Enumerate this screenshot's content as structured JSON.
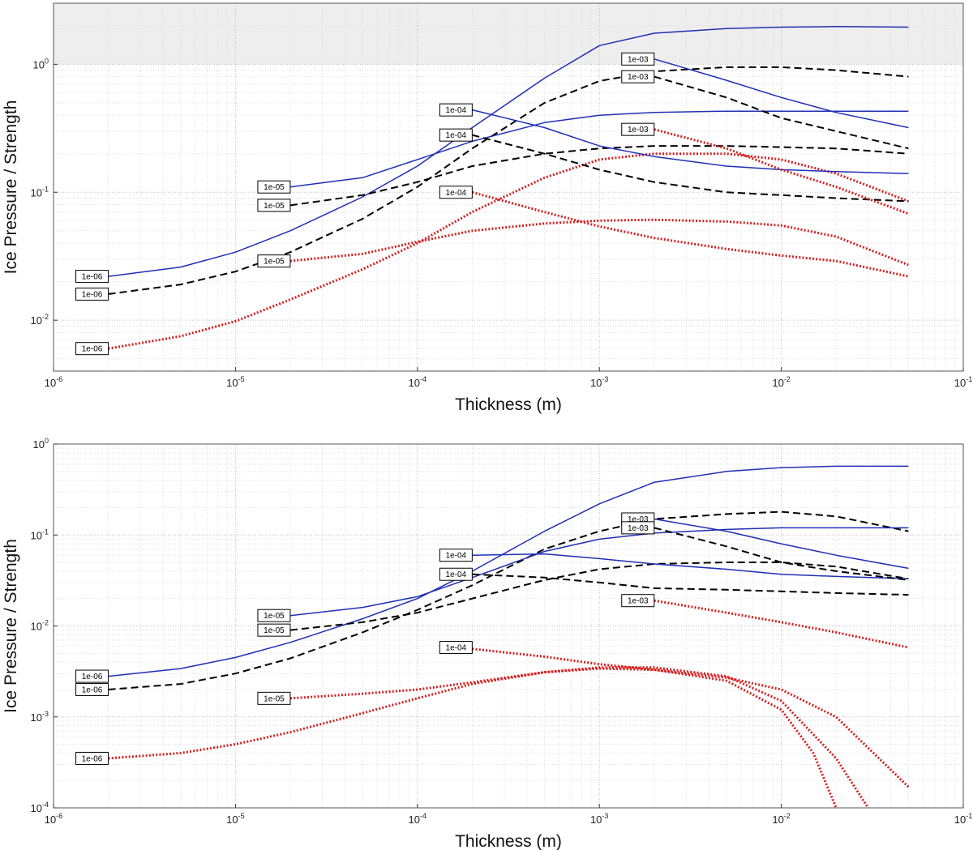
{
  "chart_data": [
    {
      "type": "line",
      "xscale": "log",
      "yscale": "log",
      "xlim": [
        1e-06,
        0.1
      ],
      "ylim": [
        0.004,
        3
      ],
      "xticks": [
        1e-06,
        1e-05,
        0.0001,
        0.001,
        0.01,
        0.1
      ],
      "xtick_labels": [
        [
          "10",
          "-6"
        ],
        [
          "10",
          "-5"
        ],
        [
          "10",
          "-4"
        ],
        [
          "10",
          "-3"
        ],
        [
          "10",
          "-2"
        ],
        [
          "10",
          "-1"
        ]
      ],
      "yticks": [
        0.01,
        0.1,
        1
      ],
      "ytick_labels": [
        [
          "10",
          "-2"
        ],
        [
          "10",
          "-1"
        ],
        [
          "10",
          "0"
        ]
      ],
      "xlabel": "Thickness (m)",
      "ylabel": "Ice Pressure / Strength",
      "grid": true,
      "shaded_band": {
        "y_from": 1,
        "y_to": 3,
        "color": "#eeeeee"
      },
      "series": [
        {
          "label": "1e-06",
          "style": "solid",
          "color": "#1f2fb5",
          "x": [
            2e-06,
            5e-06,
            1e-05,
            2e-05,
            5e-05,
            0.0001,
            0.0002,
            0.0005,
            0.001,
            0.002,
            0.005,
            0.01,
            0.02,
            0.05
          ],
          "y": [
            0.022,
            0.026,
            0.034,
            0.05,
            0.092,
            0.16,
            0.32,
            0.78,
            1.4,
            1.75,
            1.9,
            1.95,
            1.97,
            1.95
          ]
        },
        {
          "label": "1e-06",
          "style": "dashed",
          "color": "#000000",
          "x": [
            2e-06,
            5e-06,
            1e-05,
            2e-05,
            5e-05,
            0.0001,
            0.0002,
            0.0005,
            0.001,
            0.002,
            0.005,
            0.01,
            0.02,
            0.05
          ],
          "y": [
            0.016,
            0.019,
            0.024,
            0.034,
            0.062,
            0.11,
            0.22,
            0.5,
            0.74,
            0.88,
            0.95,
            0.95,
            0.9,
            0.8
          ]
        },
        {
          "label": "1e-06",
          "style": "dotted",
          "color": "#d42020",
          "x": [
            2e-06,
            5e-06,
            1e-05,
            2e-05,
            5e-05,
            0.0001,
            0.0002,
            0.0005,
            0.001,
            0.002,
            0.005,
            0.01,
            0.02,
            0.05
          ],
          "y": [
            0.006,
            0.0075,
            0.0098,
            0.0145,
            0.025,
            0.04,
            0.07,
            0.13,
            0.18,
            0.2,
            0.2,
            0.18,
            0.14,
            0.085
          ]
        },
        {
          "label": "1e-05",
          "style": "solid",
          "color": "#1f2fb5",
          "x": [
            2e-05,
            5e-05,
            0.0001,
            0.0002,
            0.0005,
            0.001,
            0.002,
            0.005,
            0.01,
            0.02,
            0.05
          ],
          "y": [
            0.11,
            0.13,
            0.18,
            0.25,
            0.35,
            0.4,
            0.42,
            0.43,
            0.43,
            0.43,
            0.43
          ]
        },
        {
          "label": "1e-05",
          "style": "dashed",
          "color": "#000000",
          "x": [
            2e-05,
            5e-05,
            0.0001,
            0.0002,
            0.0005,
            0.001,
            0.002,
            0.005,
            0.01,
            0.02,
            0.05
          ],
          "y": [
            0.079,
            0.095,
            0.12,
            0.16,
            0.2,
            0.22,
            0.23,
            0.23,
            0.225,
            0.22,
            0.2
          ]
        },
        {
          "label": "1e-05",
          "style": "dotted",
          "color": "#d42020",
          "x": [
            2e-05,
            5e-05,
            0.0001,
            0.0002,
            0.0005,
            0.001,
            0.002,
            0.005,
            0.01,
            0.02,
            0.05
          ],
          "y": [
            0.029,
            0.033,
            0.041,
            0.05,
            0.057,
            0.06,
            0.061,
            0.059,
            0.055,
            0.045,
            0.027
          ]
        },
        {
          "label": "1e-04",
          "style": "solid",
          "color": "#1f2fb5",
          "x": [
            0.0002,
            0.0005,
            0.001,
            0.002,
            0.005,
            0.01,
            0.02,
            0.05
          ],
          "y": [
            0.44,
            0.32,
            0.23,
            0.19,
            0.16,
            0.15,
            0.145,
            0.14
          ]
        },
        {
          "label": "1e-04",
          "style": "dashed",
          "color": "#000000",
          "x": [
            0.0002,
            0.0005,
            0.001,
            0.002,
            0.005,
            0.01,
            0.02,
            0.05
          ],
          "y": [
            0.28,
            0.2,
            0.15,
            0.12,
            0.1,
            0.095,
            0.09,
            0.085
          ]
        },
        {
          "label": "1e-04",
          "style": "dotted",
          "color": "#d42020",
          "x": [
            0.0002,
            0.0005,
            0.001,
            0.002,
            0.005,
            0.01,
            0.02,
            0.05
          ],
          "y": [
            0.1,
            0.07,
            0.054,
            0.044,
            0.036,
            0.032,
            0.029,
            0.022
          ]
        },
        {
          "label": "1e-03",
          "style": "solid",
          "color": "#1f2fb5",
          "x": [
            0.002,
            0.005,
            0.01,
            0.02,
            0.05
          ],
          "y": [
            1.1,
            0.75,
            0.55,
            0.42,
            0.32
          ]
        },
        {
          "label": "1e-03",
          "style": "dashed",
          "color": "#000000",
          "x": [
            0.002,
            0.005,
            0.01,
            0.02,
            0.05
          ],
          "y": [
            0.8,
            0.55,
            0.38,
            0.3,
            0.22
          ]
        },
        {
          "label": "1e-03",
          "style": "dotted",
          "color": "#d42020",
          "x": [
            0.002,
            0.005,
            0.01,
            0.02,
            0.05
          ],
          "y": [
            0.31,
            0.22,
            0.15,
            0.11,
            0.068
          ]
        }
      ],
      "labels": [
        {
          "text": "1e-06",
          "x": 2e-06,
          "y": 0.022
        },
        {
          "text": "1e-06",
          "x": 2e-06,
          "y": 0.016
        },
        {
          "text": "1e-06",
          "x": 2e-06,
          "y": 0.006
        },
        {
          "text": "1e-05",
          "x": 2e-05,
          "y": 0.11
        },
        {
          "text": "1e-05",
          "x": 2e-05,
          "y": 0.079
        },
        {
          "text": "1e-05",
          "x": 2e-05,
          "y": 0.029
        },
        {
          "text": "1e-04",
          "x": 0.0002,
          "y": 0.44
        },
        {
          "text": "1e-04",
          "x": 0.0002,
          "y": 0.28
        },
        {
          "text": "1e-04",
          "x": 0.0002,
          "y": 0.1
        },
        {
          "text": "1e-03",
          "x": 0.002,
          "y": 1.1
        },
        {
          "text": "1e-03",
          "x": 0.002,
          "y": 0.8
        },
        {
          "text": "1e-03",
          "x": 0.002,
          "y": 0.31
        }
      ]
    },
    {
      "type": "line",
      "xscale": "log",
      "yscale": "log",
      "xlim": [
        1e-06,
        0.1
      ],
      "ylim": [
        0.0001,
        1
      ],
      "xticks": [
        1e-06,
        1e-05,
        0.0001,
        0.001,
        0.01,
        0.1
      ],
      "xtick_labels": [
        [
          "10",
          "-6"
        ],
        [
          "10",
          "-5"
        ],
        [
          "10",
          "-4"
        ],
        [
          "10",
          "-3"
        ],
        [
          "10",
          "-2"
        ],
        [
          "10",
          "-1"
        ]
      ],
      "yticks": [
        0.0001,
        0.001,
        0.01,
        0.1,
        1
      ],
      "ytick_labels": [
        [
          "10",
          "-4"
        ],
        [
          "10",
          "-3"
        ],
        [
          "10",
          "-2"
        ],
        [
          "10",
          "-1"
        ],
        [
          "10",
          "0"
        ]
      ],
      "xlabel": "Thickness (m)",
      "ylabel": "Ice Pressure / Strength",
      "grid": true,
      "series": [
        {
          "label": "1e-06",
          "style": "solid",
          "color": "#1f2fb5",
          "x": [
            2e-06,
            5e-06,
            1e-05,
            2e-05,
            5e-05,
            0.0001,
            0.0002,
            0.0005,
            0.001,
            0.002,
            0.005,
            0.01,
            0.02,
            0.05
          ],
          "y": [
            0.0028,
            0.0034,
            0.0045,
            0.0066,
            0.012,
            0.02,
            0.04,
            0.11,
            0.22,
            0.38,
            0.5,
            0.55,
            0.57,
            0.57
          ]
        },
        {
          "label": "1e-06",
          "style": "dashed",
          "color": "#000000",
          "x": [
            2e-06,
            5e-06,
            1e-05,
            2e-05,
            5e-05,
            0.0001,
            0.0002,
            0.0005,
            0.001,
            0.002,
            0.005,
            0.01,
            0.02,
            0.05
          ],
          "y": [
            0.002,
            0.0023,
            0.003,
            0.0044,
            0.0085,
            0.015,
            0.028,
            0.07,
            0.11,
            0.15,
            0.17,
            0.18,
            0.16,
            0.11
          ]
        },
        {
          "label": "1e-06",
          "style": "dotted",
          "color": "#d42020",
          "x": [
            2e-06,
            5e-06,
            1e-05,
            2e-05,
            5e-05,
            0.0001,
            0.0002,
            0.0005,
            0.001,
            0.002,
            0.005,
            0.01,
            0.02,
            0.05
          ],
          "y": [
            0.00035,
            0.0004,
            0.0005,
            0.00068,
            0.0011,
            0.0016,
            0.0023,
            0.0031,
            0.0034,
            0.0033,
            0.0027,
            0.002,
            0.001,
            0.00017
          ]
        },
        {
          "label": "1e-05",
          "style": "solid",
          "color": "#1f2fb5",
          "x": [
            2e-05,
            5e-05,
            0.0001,
            0.0002,
            0.0005,
            0.001,
            0.002,
            0.005,
            0.01,
            0.02,
            0.05
          ],
          "y": [
            0.013,
            0.016,
            0.021,
            0.034,
            0.066,
            0.09,
            0.105,
            0.115,
            0.12,
            0.12,
            0.12
          ]
        },
        {
          "label": "1e-05",
          "style": "dashed",
          "color": "#000000",
          "x": [
            2e-05,
            5e-05,
            0.0001,
            0.0002,
            0.0005,
            0.001,
            0.002,
            0.005,
            0.01,
            0.02,
            0.05
          ],
          "y": [
            0.009,
            0.011,
            0.014,
            0.02,
            0.032,
            0.042,
            0.048,
            0.05,
            0.05,
            0.045,
            0.033
          ]
        },
        {
          "label": "1e-05",
          "style": "dotted",
          "color": "#d42020",
          "x": [
            2e-05,
            5e-05,
            0.0001,
            0.0002,
            0.0005,
            0.001,
            0.002,
            0.005,
            0.01,
            0.02,
            0.03
          ],
          "y": [
            0.0016,
            0.0018,
            0.002,
            0.0024,
            0.0031,
            0.0035,
            0.0035,
            0.0028,
            0.0015,
            0.00035,
            0.0001
          ]
        },
        {
          "label": "1e-04",
          "style": "solid",
          "color": "#1f2fb5",
          "x": [
            0.0002,
            0.0005,
            0.001,
            0.002,
            0.005,
            0.01,
            0.02,
            0.05
          ],
          "y": [
            0.06,
            0.062,
            0.055,
            0.048,
            0.042,
            0.037,
            0.035,
            0.033
          ]
        },
        {
          "label": "1e-04",
          "style": "dashed",
          "color": "#000000",
          "x": [
            0.0002,
            0.0005,
            0.001,
            0.002,
            0.005,
            0.01,
            0.02,
            0.05
          ],
          "y": [
            0.037,
            0.034,
            0.03,
            0.026,
            0.025,
            0.024,
            0.023,
            0.022
          ]
        },
        {
          "label": "1e-04",
          "style": "dotted",
          "color": "#d42020",
          "x": [
            0.0002,
            0.0005,
            0.001,
            0.002,
            0.005,
            0.01,
            0.015,
            0.02
          ],
          "y": [
            0.0056,
            0.0046,
            0.0038,
            0.0033,
            0.0025,
            0.0012,
            0.0004,
            0.0001
          ]
        },
        {
          "label": "1e-03",
          "style": "solid",
          "color": "#1f2fb5",
          "x": [
            0.002,
            0.005,
            0.01,
            0.02,
            0.05
          ],
          "y": [
            0.15,
            0.11,
            0.08,
            0.06,
            0.043
          ]
        },
        {
          "label": "1e-03",
          "style": "dashed",
          "color": "#000000",
          "x": [
            0.002,
            0.005,
            0.01,
            0.02,
            0.05
          ],
          "y": [
            0.12,
            0.075,
            0.05,
            0.04,
            0.032
          ]
        },
        {
          "label": "1e-03",
          "style": "dotted",
          "color": "#d42020",
          "x": [
            0.002,
            0.005,
            0.01,
            0.02,
            0.05
          ],
          "y": [
            0.019,
            0.014,
            0.011,
            0.0085,
            0.0058
          ]
        }
      ],
      "labels": [
        {
          "text": "1e-06",
          "x": 2e-06,
          "y": 0.0028
        },
        {
          "text": "1e-06",
          "x": 2e-06,
          "y": 0.002
        },
        {
          "text": "1e-06",
          "x": 2e-06,
          "y": 0.00035
        },
        {
          "text": "1e-05",
          "x": 2e-05,
          "y": 0.013
        },
        {
          "text": "1e-05",
          "x": 2e-05,
          "y": 0.009
        },
        {
          "text": "1e-05",
          "x": 2e-05,
          "y": 0.0016
        },
        {
          "text": "1e-04",
          "x": 0.0002,
          "y": 0.06
        },
        {
          "text": "1e-04",
          "x": 0.0002,
          "y": 0.037
        },
        {
          "text": "1e-04",
          "x": 0.0002,
          "y": 0.0058
        },
        {
          "text": "1e-03",
          "x": 0.002,
          "y": 0.15
        },
        {
          "text": "1e-03",
          "x": 0.002,
          "y": 0.12
        },
        {
          "text": "1e-03",
          "x": 0.002,
          "y": 0.019
        }
      ]
    }
  ]
}
